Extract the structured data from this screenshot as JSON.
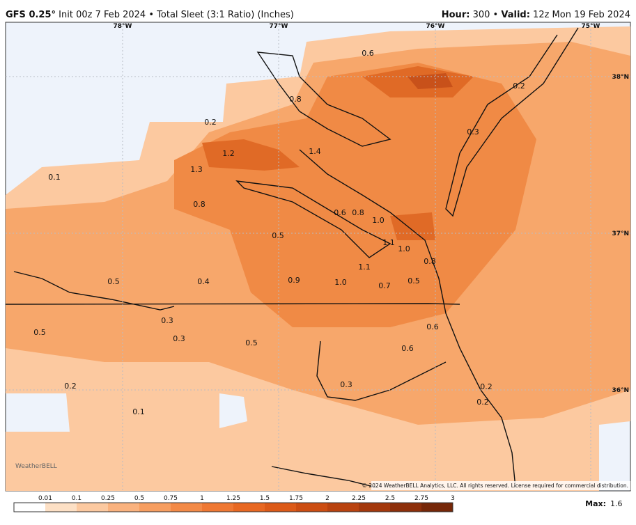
{
  "header": {
    "model": "GFS 0.25°",
    "init": "Init 00z 7 Feb 2024",
    "separator": "•",
    "product": "Total Sleet (3:1 Ratio) (Inches)",
    "hour_label": "Hour:",
    "hour": "300",
    "valid_label": "Valid:",
    "valid": "12z Mon 19 Feb 2024"
  },
  "map": {
    "longitude_labels": [
      "78°W",
      "77°W",
      "76°W",
      "75°W"
    ],
    "latitude_labels": [
      "38°N",
      "37°N",
      "36°N"
    ],
    "value_labels": [
      "0.6",
      "0.8",
      "0.2",
      "0.2",
      "0.3",
      "1.2",
      "1.4",
      "1.3",
      "0.1",
      "0.8",
      "0.6",
      "0.8",
      "1.0",
      "0.5",
      "1.1",
      "1.0",
      "0.8",
      "1.1",
      "0.5",
      "0.4",
      "0.9",
      "1.0",
      "0.7",
      "0.5",
      "0.3",
      "0.6",
      "0.5",
      "0.3",
      "0.5",
      "0.6",
      "0.3",
      "0.2",
      "0.2",
      "0.2",
      "0.1"
    ],
    "copyright": "© 2024 WeatherBELL Analytics, LLC. All rights reserved. License required for commercial distribution.",
    "logo": "WeatherBELL"
  },
  "colorbar": {
    "ticks": [
      0.01,
      0.1,
      0.25,
      0.5,
      0.75,
      1,
      1.25,
      1.5,
      1.75,
      2,
      2.25,
      2.5,
      2.75,
      3
    ],
    "colors": [
      "#ffffff",
      "#fde0c5",
      "#fcc9a0",
      "#fab27e",
      "#f79e60",
      "#f38a47",
      "#ef7833",
      "#e86822",
      "#dc5a18",
      "#cc4d12",
      "#b9420f",
      "#a4380c",
      "#8d2f0a",
      "#762708"
    ],
    "max_label": "Max:",
    "max": "1.6"
  }
}
